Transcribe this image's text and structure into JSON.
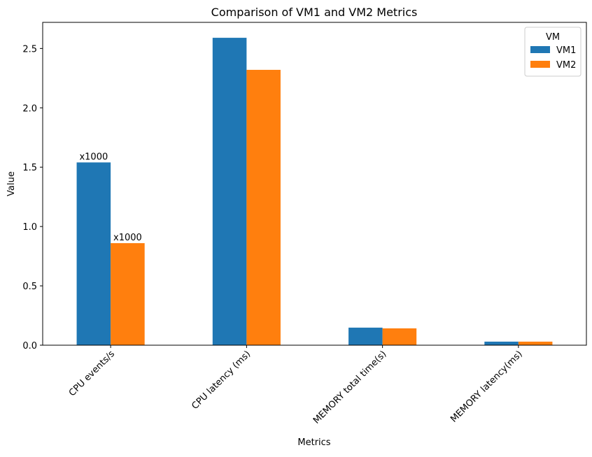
{
  "chart_data": {
    "type": "bar",
    "title": "Comparison of VM1 and VM2 Metrics",
    "xlabel": "Metrics",
    "ylabel": "Value",
    "categories": [
      "CPU events/s",
      "CPU latency (ms)",
      "MEMORY total time(s)",
      "MEMORY latency(ms)"
    ],
    "series": [
      {
        "name": "VM1",
        "color": "#1f77b4",
        "values": [
          1.54,
          2.59,
          0.148,
          0.03
        ]
      },
      {
        "name": "VM2",
        "color": "#ff7f0e",
        "values": [
          0.86,
          2.32,
          0.142,
          0.03
        ]
      }
    ],
    "yticks": [
      0.0,
      0.5,
      1.0,
      1.5,
      2.0,
      2.5
    ],
    "ytick_labels": [
      "0.0",
      "0.5",
      "1.0",
      "1.5",
      "2.0",
      "2.5"
    ],
    "ylim": [
      0,
      2.72
    ],
    "grid": false,
    "legend": {
      "title": "VM",
      "placement": "top-right"
    },
    "annotations": [
      {
        "series": 0,
        "category": 0,
        "text": "x1000"
      },
      {
        "series": 1,
        "category": 0,
        "text": "x1000"
      }
    ]
  }
}
